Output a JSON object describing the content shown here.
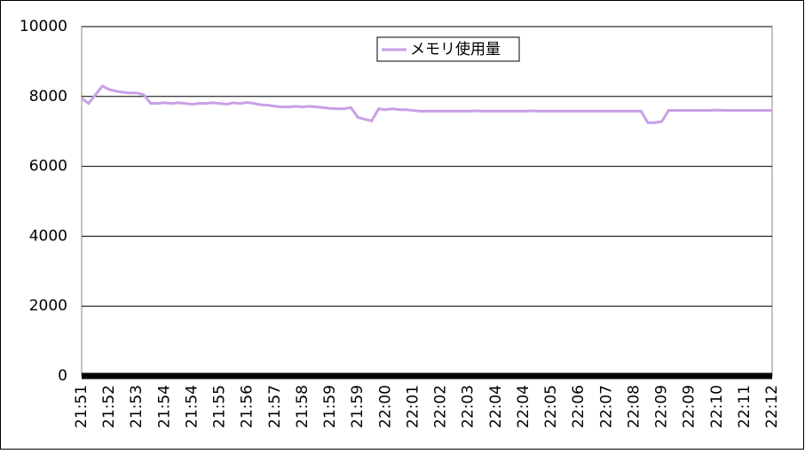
{
  "chart_data": {
    "type": "line",
    "categories": [
      "21:51",
      null,
      null,
      null,
      "21:52",
      null,
      null,
      null,
      "21:53",
      null,
      null,
      null,
      "21:54",
      null,
      null,
      null,
      "21:54",
      null,
      null,
      null,
      "21:55",
      null,
      null,
      null,
      "21:56",
      null,
      null,
      null,
      "21:57",
      null,
      null,
      null,
      "21:58",
      null,
      null,
      null,
      "21:59",
      null,
      null,
      null,
      "21:59",
      null,
      null,
      null,
      "22:00",
      null,
      null,
      null,
      "22:01",
      null,
      null,
      null,
      "22:02",
      null,
      null,
      null,
      "22:03",
      null,
      null,
      null,
      "22:04",
      null,
      null,
      null,
      "22:04",
      null,
      null,
      null,
      "22:05",
      null,
      null,
      null,
      "22:06",
      null,
      null,
      null,
      "22:07",
      null,
      null,
      null,
      "22:08",
      null,
      null,
      null,
      "22:09",
      null,
      null,
      null,
      "22:09",
      null,
      null,
      null,
      "22:10",
      null,
      null,
      null,
      "22:11",
      null,
      null,
      null,
      "22:12"
    ],
    "series": [
      {
        "name": "メモリ使用量",
        "color": "#c9a0e6",
        "values": [
          7950,
          7800,
          8050,
          8300,
          8200,
          8150,
          8120,
          8100,
          8100,
          8050,
          7800,
          7800,
          7820,
          7800,
          7820,
          7800,
          7780,
          7800,
          7800,
          7820,
          7800,
          7780,
          7820,
          7800,
          7830,
          7800,
          7760,
          7750,
          7720,
          7700,
          7700,
          7720,
          7700,
          7720,
          7700,
          7680,
          7660,
          7650,
          7650,
          7680,
          7400,
          7350,
          7300,
          7650,
          7620,
          7650,
          7620,
          7620,
          7600,
          7580,
          7580,
          7580,
          7580,
          7580,
          7580,
          7580,
          7580,
          7590,
          7580,
          7580,
          7580,
          7580,
          7580,
          7580,
          7580,
          7590,
          7580,
          7580,
          7580,
          7580,
          7580,
          7580,
          7580,
          7580,
          7580,
          7580,
          7580,
          7580,
          7580,
          7580,
          7580,
          7580,
          7250,
          7250,
          7280,
          7600,
          7600,
          7600,
          7600,
          7600,
          7600,
          7600,
          7610,
          7600,
          7600,
          7600,
          7600,
          7600,
          7600,
          7600,
          7600
        ]
      }
    ],
    "ylim": [
      0,
      10000
    ],
    "yticks": [
      0,
      2000,
      4000,
      6000,
      8000,
      10000
    ],
    "grid": true
  }
}
